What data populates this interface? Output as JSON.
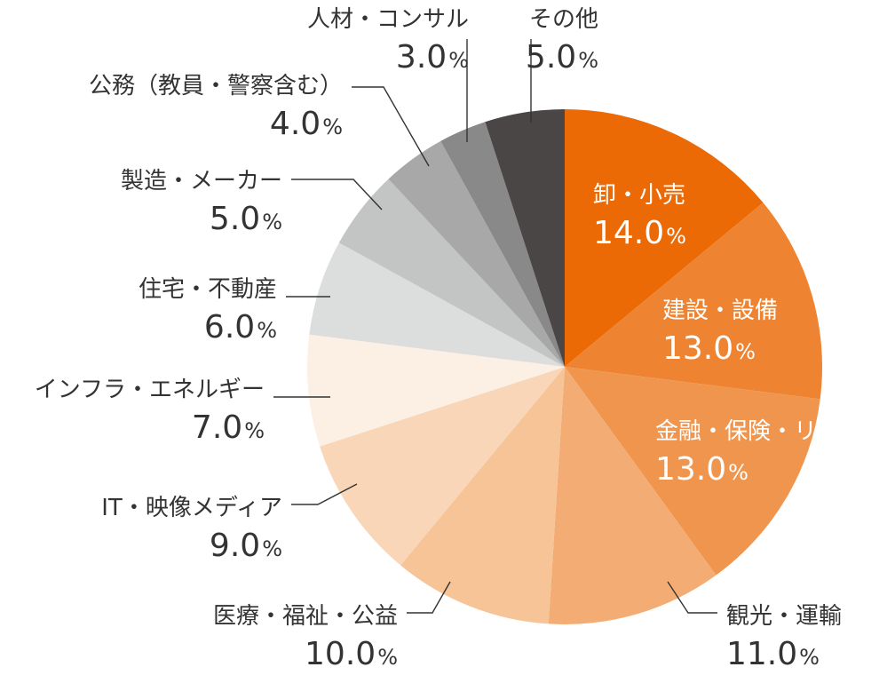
{
  "chart_data": {
    "type": "pie",
    "start_angle_deg": 0,
    "direction": "clockwise",
    "slices": [
      {
        "label": "卸・小売",
        "value": 14.0,
        "display": "14.0",
        "color": "#eb6a06"
      },
      {
        "label": "建設・設備",
        "value": 13.0,
        "display": "13.0",
        "color": "#ee8431"
      },
      {
        "label": "金融・保険・リース",
        "value": 13.0,
        "display": "13.0",
        "color": "#f0954d"
      },
      {
        "label": "観光・運輸",
        "value": 11.0,
        "display": "11.0",
        "color": "#f3ad74"
      },
      {
        "label": "医療・福祉・公益",
        "value": 10.0,
        "display": "10.0",
        "color": "#f6c497"
      },
      {
        "label": "IT・映像メディア",
        "value": 9.0,
        "display": "9.0",
        "color": "#f9d6b7"
      },
      {
        "label": "インフラ・エネルギー",
        "value": 7.0,
        "display": "7.0",
        "color": "#fcefe3"
      },
      {
        "label": "住宅・不動産",
        "value": 6.0,
        "display": "6.0",
        "color": "#dcdddd"
      },
      {
        "label": "製造・メーカー",
        "value": 5.0,
        "display": "5.0",
        "color": "#c3c4c4"
      },
      {
        "label": "公務（教員・警察含む）",
        "value": 4.0,
        "display": "4.0",
        "color": "#a8a8a8"
      },
      {
        "label": "人材・コンサル",
        "value": 3.0,
        "display": "3.0",
        "color": "#898989"
      },
      {
        "label": "その他",
        "value": 5.0,
        "display": "5.0",
        "color": "#4b4646"
      }
    ],
    "unit": "%",
    "label_color_inside": "#ffffff",
    "label_color_outside": "#333333"
  }
}
